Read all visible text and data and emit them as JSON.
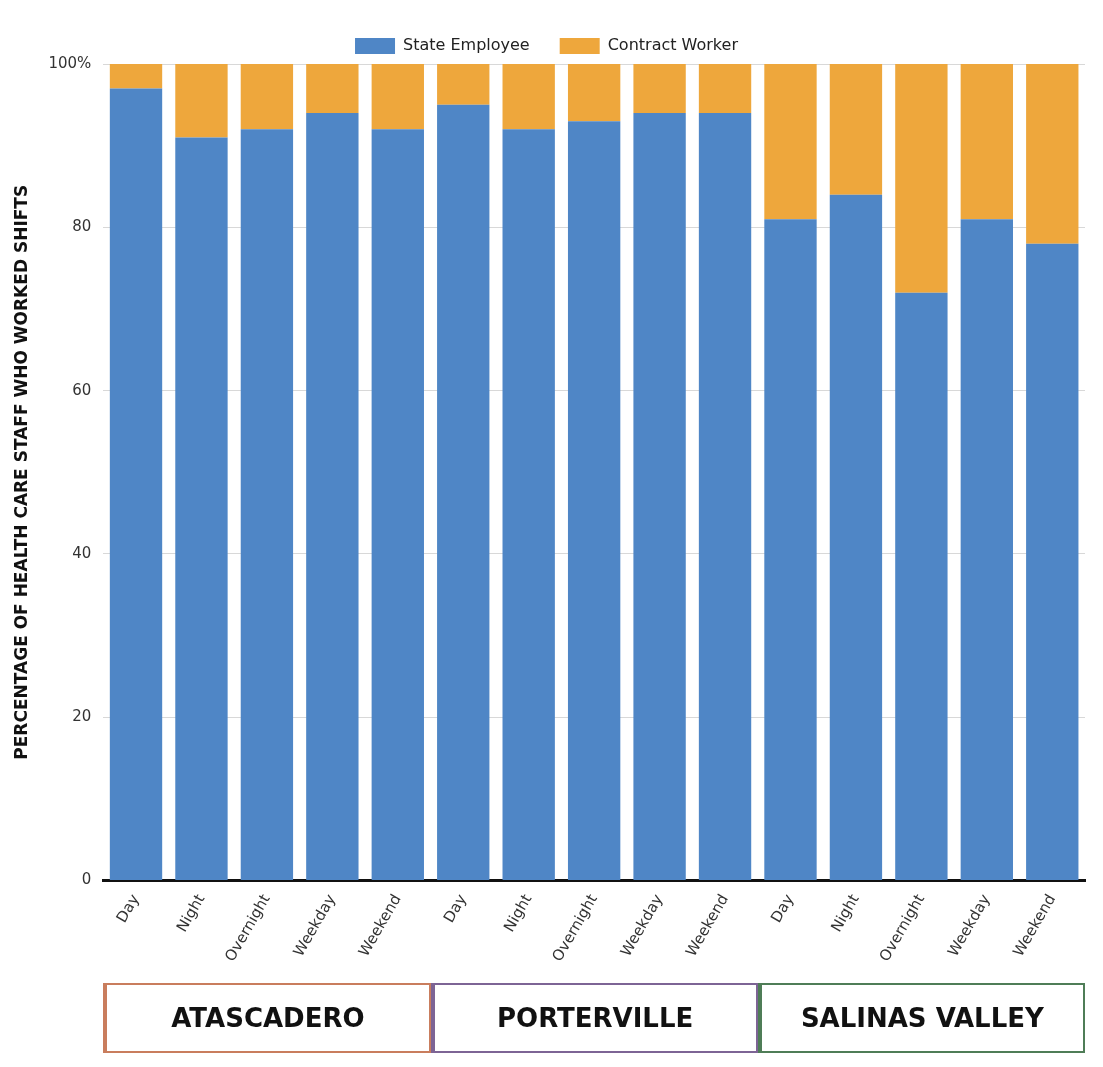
{
  "chart_data": {
    "type": "bar",
    "stacked": true,
    "categories": [
      "Day",
      "Night",
      "Overnight",
      "Weekday",
      "Weekend",
      "Day",
      "Night",
      "Overnight",
      "Weekday",
      "Weekend",
      "Day",
      "Night",
      "Overnight",
      "Weekday",
      "Weekend"
    ],
    "series": [
      {
        "name": "State Employee",
        "color": "#4f86c6",
        "values": [
          97,
          91,
          92,
          94,
          92,
          95,
          92,
          93,
          94,
          94,
          81,
          84,
          72,
          81,
          78
        ]
      },
      {
        "name": "Contract Worker",
        "color": "#eea73c",
        "values": [
          3,
          9,
          8,
          6,
          8,
          5,
          8,
          7,
          6,
          6,
          19,
          16,
          28,
          19,
          22
        ]
      }
    ],
    "ylabel": "PERCENTAGE OF HEALTH CARE STAFF WHO WORKED SHIFTS",
    "ylim": [
      0,
      100
    ],
    "yticks": [
      0,
      20,
      40,
      60,
      80,
      {
        "value": 100,
        "label": "100%"
      }
    ],
    "grid": "y",
    "legend": "top",
    "annotations": [
      "ATASCADERO",
      "PORTERVILLE",
      "SALINAS VALLEY"
    ]
  }
}
